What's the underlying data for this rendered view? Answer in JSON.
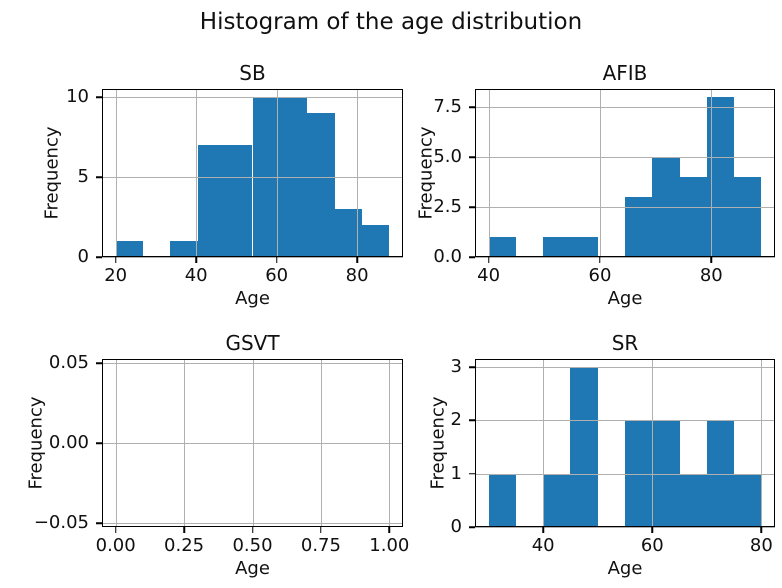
{
  "figure": {
    "title": "Histogram of the age distribution"
  },
  "style": {
    "bar_color": "#1f77b4",
    "grid_color": "#b0b0b0",
    "spine_color": "#000000",
    "text_color": "#111111",
    "background": "#ffffff"
  },
  "chart_data": [
    {
      "id": "SB",
      "type": "bar",
      "subtype": "histogram",
      "title": "SB",
      "xlabel": "Age",
      "ylabel": "Frequency",
      "bin_edges": [
        20.0,
        26.8,
        33.6,
        40.4,
        47.2,
        54.0,
        60.8,
        67.6,
        74.4,
        81.2,
        88.0
      ],
      "counts": [
        1,
        0,
        1,
        7,
        7,
        10,
        10,
        9,
        3,
        2
      ],
      "xlim": [
        16.6,
        91.4
      ],
      "ylim": [
        0,
        10.5
      ],
      "xticks": {
        "values": [
          20,
          40,
          60,
          80
        ],
        "labels": [
          "20",
          "40",
          "60",
          "80"
        ]
      },
      "yticks": {
        "values": [
          0,
          5,
          10
        ],
        "labels": [
          "0",
          "5",
          "10"
        ]
      },
      "grid": true,
      "legend": null
    },
    {
      "id": "AFIB",
      "type": "bar",
      "subtype": "histogram",
      "title": "AFIB",
      "xlabel": "Age",
      "ylabel": "Frequency",
      "bin_edges": [
        40.0,
        44.9,
        49.8,
        54.7,
        59.6,
        64.5,
        69.4,
        74.3,
        79.2,
        84.1,
        89.0
      ],
      "counts": [
        1,
        0,
        1,
        1,
        0,
        3,
        5,
        4,
        8,
        4
      ],
      "xlim": [
        37.55,
        91.45
      ],
      "ylim": [
        0,
        8.4
      ],
      "xticks": {
        "values": [
          40,
          60,
          80
        ],
        "labels": [
          "40",
          "60",
          "80"
        ]
      },
      "yticks": {
        "values": [
          0.0,
          2.5,
          5.0,
          7.5
        ],
        "labels": [
          "0.0",
          "2.5",
          "5.0",
          "7.5"
        ]
      },
      "grid": true,
      "legend": null
    },
    {
      "id": "GSVT",
      "type": "bar",
      "subtype": "histogram",
      "title": "GSVT",
      "xlabel": "Age",
      "ylabel": "Frequency",
      "bin_edges": [],
      "counts": [],
      "xlim": [
        -0.05,
        1.05
      ],
      "ylim": [
        -0.0525,
        0.0525
      ],
      "xticks": {
        "values": [
          0.0,
          0.25,
          0.5,
          0.75,
          1.0
        ],
        "labels": [
          "0.00",
          "0.25",
          "0.50",
          "0.75",
          "1.00"
        ]
      },
      "yticks": {
        "values": [
          -0.05,
          0.0,
          0.05
        ],
        "labels": [
          "−0.05",
          "0.00",
          "0.05"
        ]
      },
      "grid": true,
      "legend": null
    },
    {
      "id": "SR",
      "type": "bar",
      "subtype": "histogram",
      "title": "SR",
      "xlabel": "Age",
      "ylabel": "Frequency",
      "bin_edges": [
        30,
        35,
        40,
        45,
        50,
        55,
        60,
        65,
        70,
        75,
        80
      ],
      "counts": [
        1,
        0,
        1,
        3,
        0,
        2,
        2,
        1,
        2,
        1
      ],
      "xlim": [
        27.5,
        82.5
      ],
      "ylim": [
        0,
        3.15
      ],
      "xticks": {
        "values": [
          40,
          60,
          80
        ],
        "labels": [
          "40",
          "60",
          "80"
        ]
      },
      "yticks": {
        "values": [
          0,
          1,
          2,
          3
        ],
        "labels": [
          "0",
          "1",
          "2",
          "3"
        ]
      },
      "grid": true,
      "legend": null
    }
  ]
}
